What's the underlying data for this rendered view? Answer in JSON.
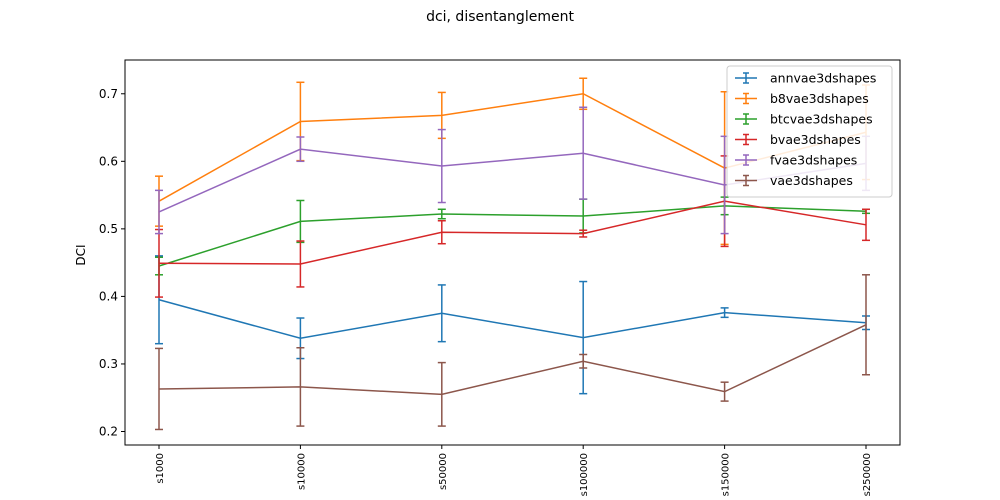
{
  "chart_data": {
    "type": "line",
    "title": "dci, disentanglement",
    "xlabel": "",
    "ylabel": "DCI",
    "categories": [
      "s1000",
      "s10000",
      "s50000",
      "s100000",
      "s150000",
      "s250000"
    ],
    "ylim": [
      0.18,
      0.75
    ],
    "yticks": [
      0.2,
      0.3,
      0.4,
      0.5,
      0.6,
      0.7
    ],
    "ytick_labels": [
      "0.2",
      "0.3",
      "0.4",
      "0.5",
      "0.6",
      "0.7"
    ],
    "grid": false,
    "legend_position": "top-right",
    "error_bars": true,
    "series": [
      {
        "name": "annvae3dshapes",
        "color": "#1f77b4",
        "values": [
          0.395,
          0.338,
          0.375,
          0.339,
          0.376,
          0.361
        ],
        "errors": [
          0.065,
          0.03,
          0.042,
          0.083,
          0.007,
          0.01
        ]
      },
      {
        "name": "b8vae3dshapes",
        "color": "#ff7f0e",
        "values": [
          0.541,
          0.659,
          0.668,
          0.7,
          0.59,
          0.643
        ],
        "errors": [
          0.037,
          0.058,
          0.034,
          0.023,
          0.113,
          0.07
        ]
      },
      {
        "name": "btcvae3dshapes",
        "color": "#2ca02c",
        "values": [
          0.445,
          0.511,
          0.522,
          0.519,
          0.534,
          0.526
        ],
        "errors": [
          0.013,
          0.031,
          0.007,
          0.025,
          0.013,
          0.003
        ]
      },
      {
        "name": "bvae3dshapes",
        "color": "#d62728",
        "values": [
          0.449,
          0.448,
          0.495,
          0.493,
          0.541,
          0.506
        ],
        "errors": [
          0.05,
          0.034,
          0.017,
          0.005,
          0.067,
          0.023
        ]
      },
      {
        "name": "fvae3dshapes",
        "color": "#9467bd",
        "values": [
          0.525,
          0.618,
          0.593,
          0.612,
          0.565,
          0.597
        ],
        "errors": [
          0.032,
          0.018,
          0.054,
          0.068,
          0.072,
          0.04
        ]
      },
      {
        "name": "vae3dshapes",
        "color": "#8c564b",
        "values": [
          0.263,
          0.266,
          0.255,
          0.304,
          0.259,
          0.358
        ],
        "errors": [
          0.06,
          0.058,
          0.047,
          0.01,
          0.014,
          0.074
        ]
      }
    ]
  }
}
